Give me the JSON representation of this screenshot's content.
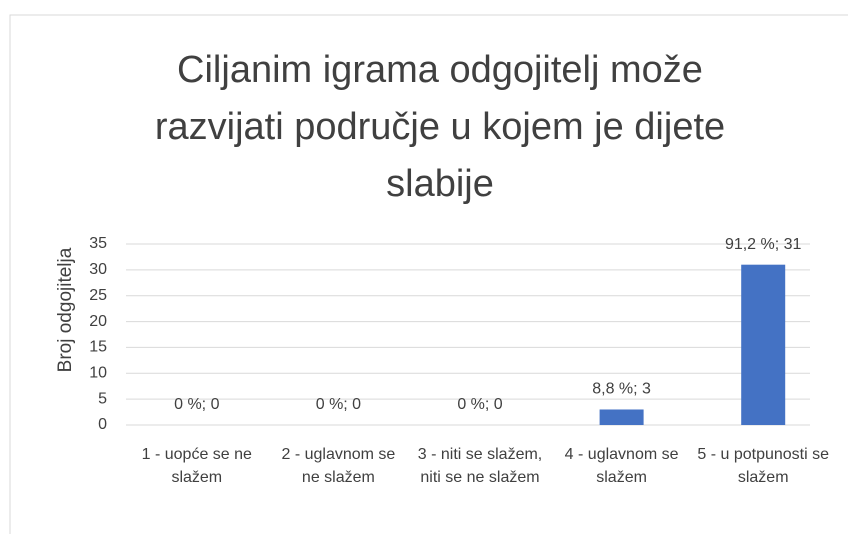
{
  "chart_data": {
    "type": "bar",
    "title": "Ciljanim igrama odgojitelj može razvijati područje u kojem je dijete slabije",
    "y_label": "Broj odgojitelja",
    "categories": [
      "1 - uopće se ne slažem",
      "2 - uglavnom se ne slažem",
      "3 - niti se slažem, niti se ne slažem",
      "4 - uglavnom se slažem",
      "5 - u potpunosti se slažem"
    ],
    "values": [
      0,
      0,
      0,
      3,
      31
    ],
    "value_labels": [
      "0 %; 0",
      "0 %; 0",
      "0 %; 0",
      "8,8 %; 3",
      "91,2 %; 31"
    ],
    "color": "#4472c4",
    "ylim": [
      0,
      35
    ],
    "yticks": [
      0,
      5,
      10,
      15,
      20,
      25,
      30,
      35
    ],
    "grid": true
  }
}
